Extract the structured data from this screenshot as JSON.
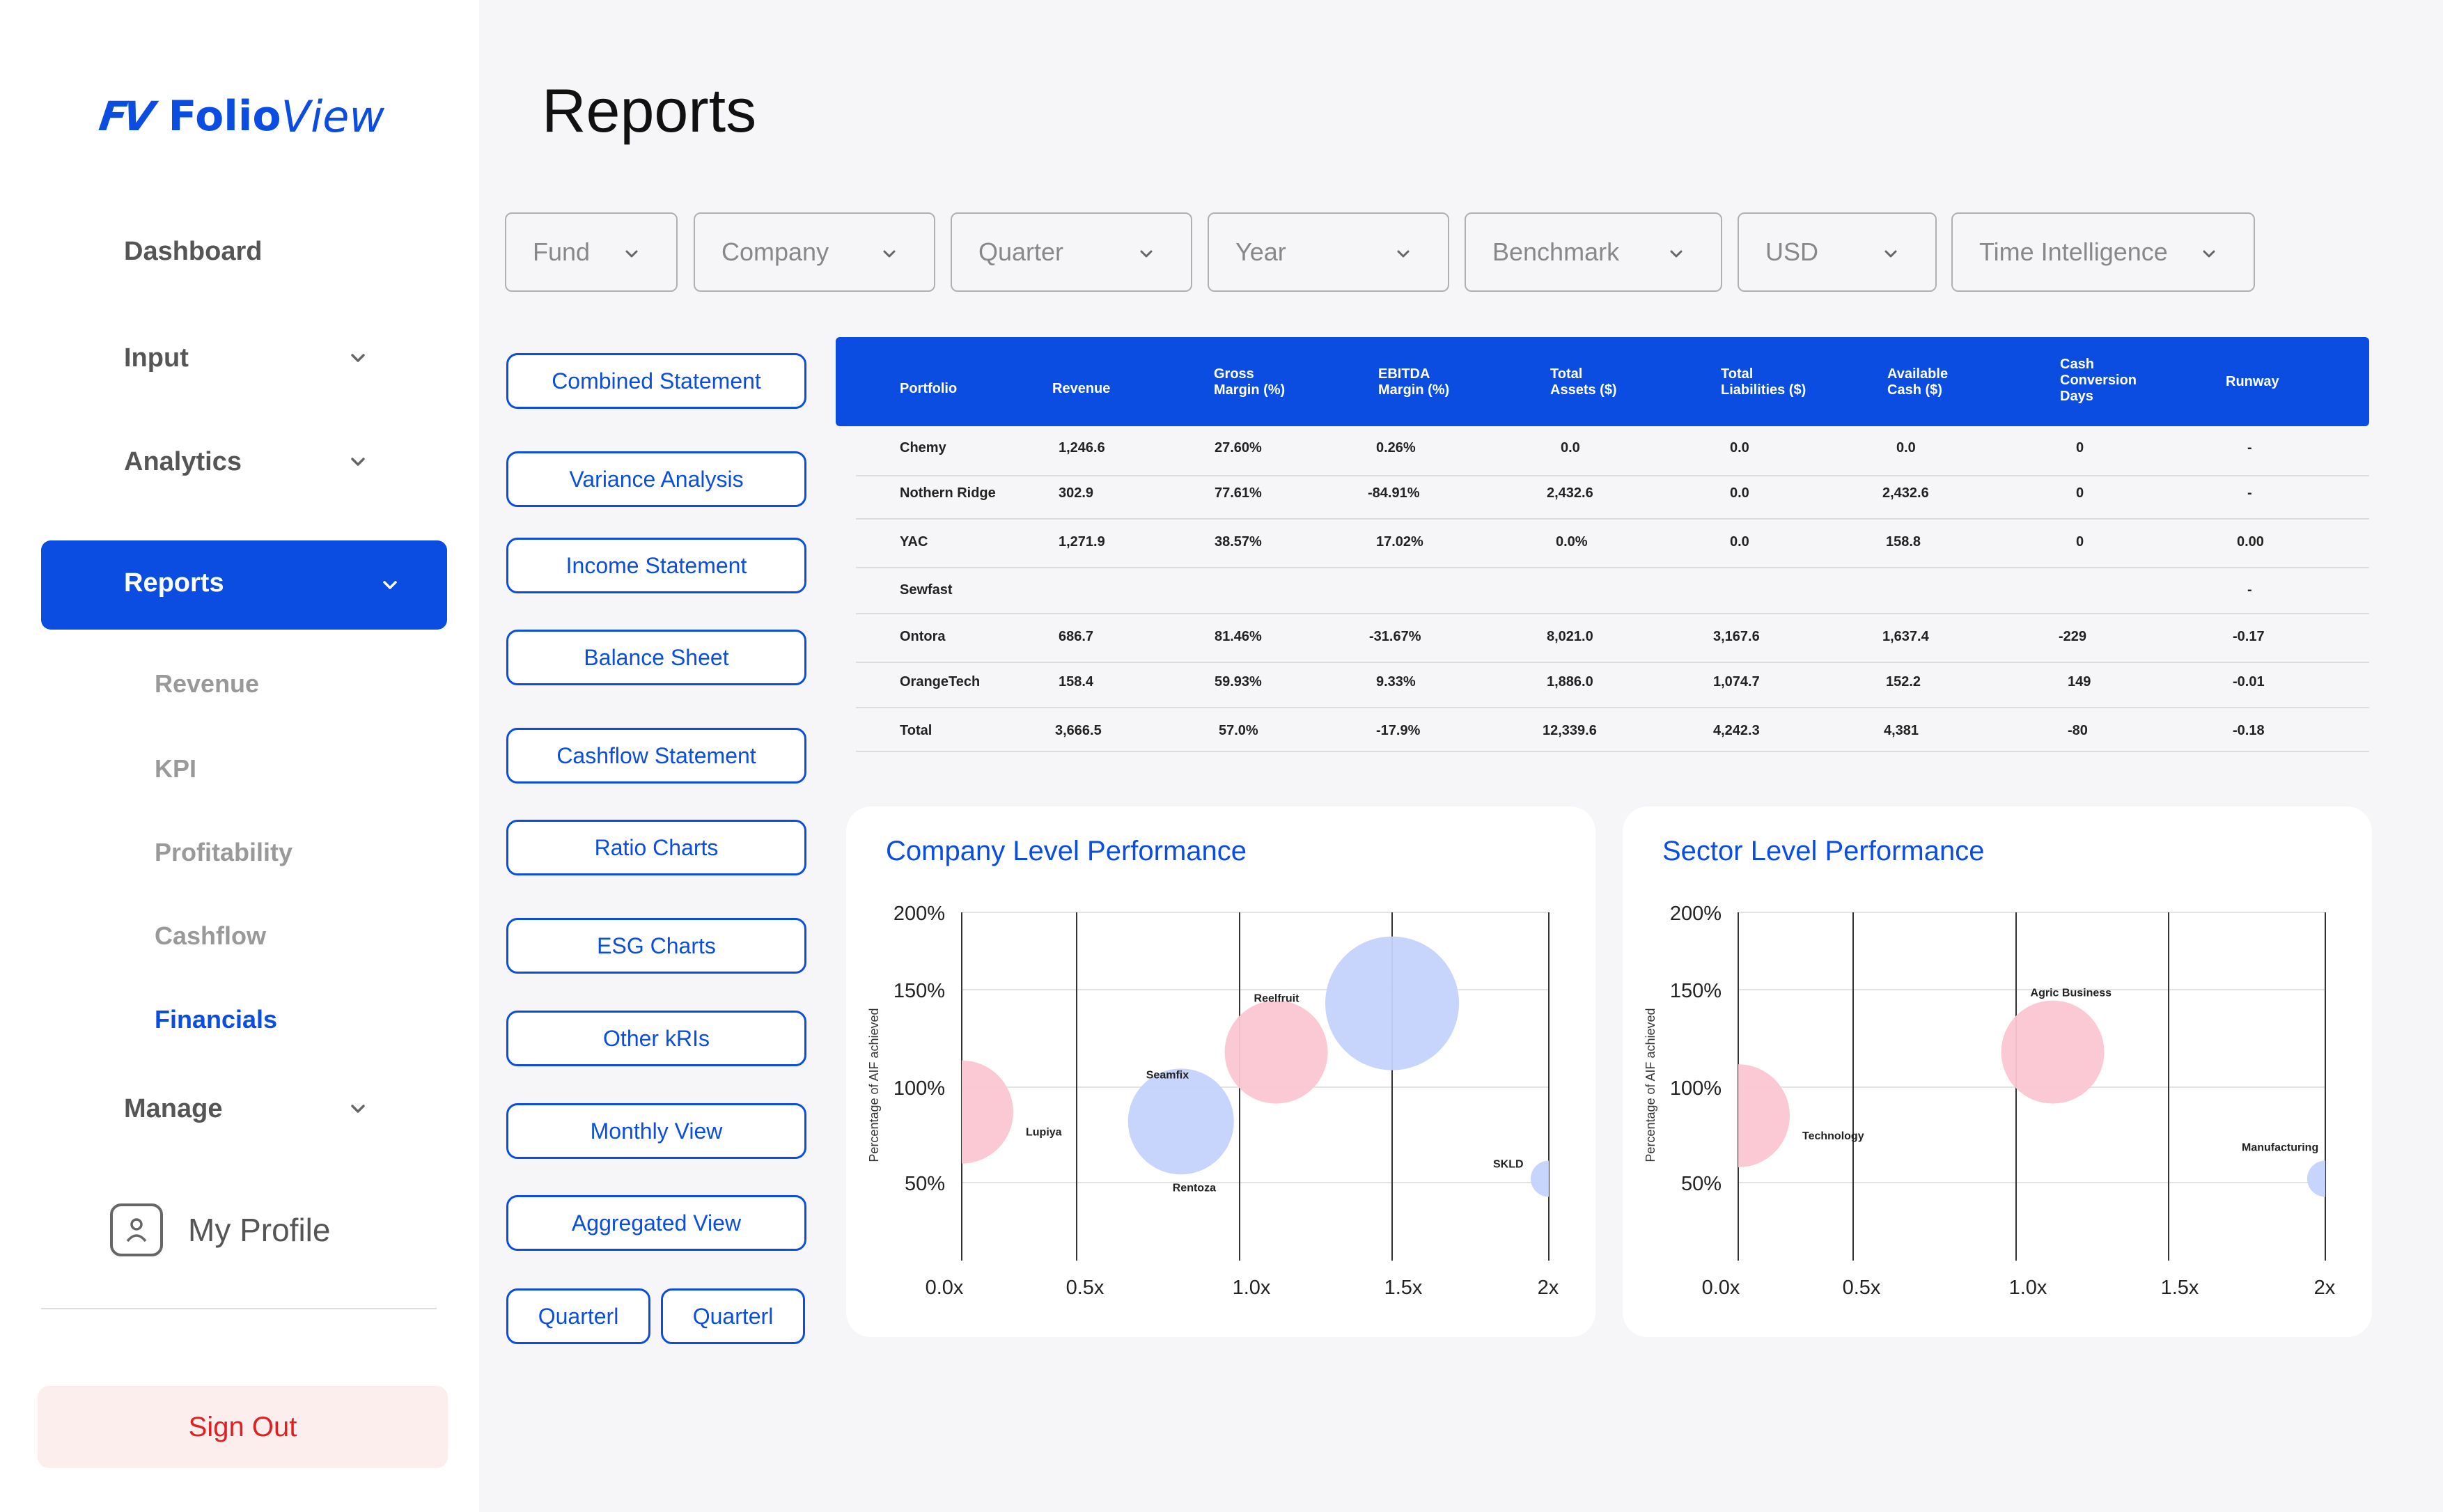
{
  "brand": {
    "mark": "FV",
    "name_bold": "Folio",
    "name_italic": "View"
  },
  "sidebar": {
    "items": [
      {
        "label": "Dashboard"
      },
      {
        "label": "Input"
      },
      {
        "label": "Analytics"
      },
      {
        "label": "Reports"
      },
      {
        "label": "Manage"
      }
    ],
    "sub_items": [
      {
        "label": "Revenue"
      },
      {
        "label": "KPI"
      },
      {
        "label": "Profitability"
      },
      {
        "label": "Cashflow"
      },
      {
        "label": "Financials"
      }
    ],
    "profile_label": "My Profile",
    "signout_label": "Sign Out"
  },
  "page_title": "Reports",
  "filters": [
    "Fund",
    "Company",
    "Quarter",
    "Year",
    "Benchmark",
    "USD",
    "Time Intelligence"
  ],
  "report_buttons": [
    "Combined Statement",
    "Variance Analysis",
    "Income Statement",
    "Balance Sheet",
    "Cashflow Statement",
    "Ratio Charts",
    "ESG Charts",
    "Other kRIs",
    "Monthly View",
    "Aggregated View"
  ],
  "small_buttons": [
    "Quarterl",
    "Quarterl"
  ],
  "table": {
    "headers": [
      "Portfolio",
      "Revenue",
      "Gross\nMargin (%)",
      "EBITDA\nMargin (%)",
      "Total\nAssets ($)",
      "Total\nLiabilities ($)",
      "Available\nCash ($)",
      "Cash\nConversion\nDays",
      "Runway"
    ],
    "rows": [
      [
        "Chemy",
        "1,246.6",
        "27.60%",
        "0.26%",
        "0.0",
        "0.0",
        "0.0",
        "0",
        "-"
      ],
      [
        "Nothern Ridge",
        "302.9",
        "77.61%",
        "-84.91%",
        "2,432.6",
        "0.0",
        "2,432.6",
        "0",
        "-"
      ],
      [
        "YAC",
        "1,271.9",
        "38.57%",
        "17.02%",
        "0.0%",
        "0.0",
        "158.8",
        "0",
        "0.00"
      ],
      [
        "Sewfast",
        "",
        "",
        "",
        "",
        "",
        "",
        "",
        "-"
      ],
      [
        "Ontora",
        "686.7",
        "81.46%",
        "-31.67%",
        "8,021.0",
        "3,167.6",
        "1,637.4",
        "-229",
        "-0.17"
      ],
      [
        "OrangeTech",
        "158.4",
        "59.93%",
        "9.33%",
        "1,886.0",
        "1,074.7",
        "152.2",
        "149",
        "-0.01"
      ],
      [
        "Total",
        "3,666.5",
        "57.0%",
        "-17.9%",
        "12,339.6",
        "4,242.3",
        "4,381",
        "-80",
        "-0.18"
      ]
    ]
  },
  "chart_data": [
    {
      "type": "scatter",
      "title": "Company Level Performance",
      "ylabel": "Percentage of AIF achieved",
      "xlabel": "",
      "x_ticks": [
        "0.0x",
        "0.5x",
        "1.0x",
        "1.5x",
        "2x"
      ],
      "y_ticks": [
        "50%",
        "100%",
        "150%",
        "200%"
      ],
      "xlim": [
        0,
        2
      ],
      "ylim": [
        20,
        200
      ],
      "points": [
        {
          "label": "Lupiya",
          "x": 0.0,
          "y": 87,
          "size": 3,
          "color": "#fbc6d2"
        },
        {
          "label": "Seamfix",
          "x": 0.82,
          "y": 82,
          "size": 4,
          "color": "#c4d2fb"
        },
        {
          "label": "Rentoza",
          "x": 0.82,
          "y": 82,
          "size": 0,
          "color": "#c4d2fb"
        },
        {
          "label": "Reelfruit",
          "x": 1.12,
          "y": 118,
          "size": 3,
          "color": "#fbc6d2"
        },
        {
          "label": "",
          "x": 1.5,
          "y": 143,
          "size": 6,
          "color": "#c4d2fb"
        },
        {
          "label": "SKLD",
          "x": 2.0,
          "y": 52,
          "size": 2,
          "color": "#c4d2fb"
        }
      ]
    },
    {
      "type": "scatter",
      "title": "Sector Level Performance",
      "ylabel": "Percentage of AIF achieved",
      "xlabel": "",
      "x_ticks": [
        "0.0x",
        "0.5x",
        "1.0x",
        "1.5x",
        "2x"
      ],
      "y_ticks": [
        "50%",
        "100%",
        "150%",
        "200%"
      ],
      "xlim": [
        0,
        2
      ],
      "ylim": [
        20,
        200
      ],
      "points": [
        {
          "label": "Technology",
          "x": 0.0,
          "y": 85,
          "size": 3,
          "color": "#fbc6d2"
        },
        {
          "label": "Agric Business",
          "x": 1.12,
          "y": 118,
          "size": 3,
          "color": "#fbc6d2"
        },
        {
          "label": "Manufacturing",
          "x": 2.0,
          "y": 52,
          "size": 2,
          "color": "#c4d2fb"
        }
      ]
    }
  ],
  "colors": {
    "accent": "#0b4de0",
    "danger": "#e02020"
  }
}
